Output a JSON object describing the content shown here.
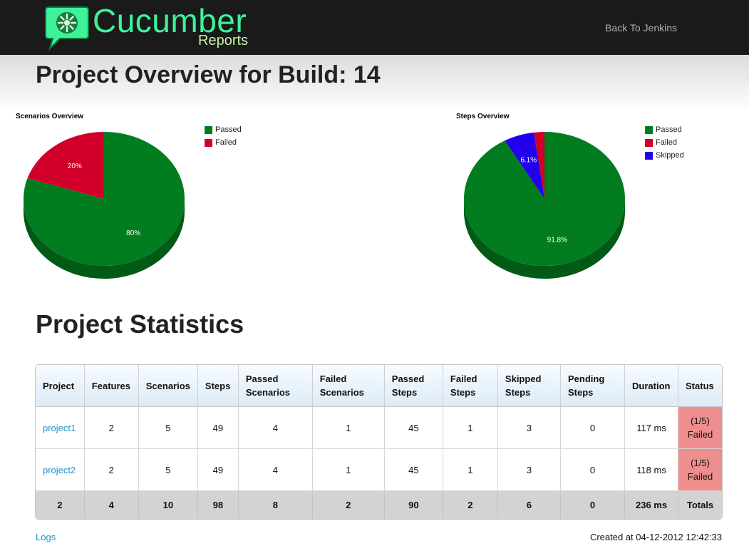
{
  "header": {
    "logo_title": "Cucumber",
    "logo_subtitle": "Reports",
    "back_link": "Back To Jenkins",
    "colors": {
      "bar": "#1a1a1a",
      "logo": "#3ff29a"
    }
  },
  "page_title": "Project Overview for Build: 14",
  "colors": {
    "passed": "#017d1f",
    "failed": "#d1002a",
    "skipped": "#2200ee"
  },
  "chart_data": [
    {
      "type": "pie",
      "title": "Scenarios Overview",
      "legend_position": "top-right",
      "slices": [
        {
          "name": "Passed",
          "value": 80,
          "label": "80%"
        },
        {
          "name": "Failed",
          "value": 20,
          "label": "20%"
        }
      ]
    },
    {
      "type": "pie",
      "title": "Steps Overview",
      "legend_position": "top-right",
      "slices": [
        {
          "name": "Passed",
          "value": 91.8,
          "label": "91.8%"
        },
        {
          "name": "Failed",
          "value": 2.1,
          "label": ""
        },
        {
          "name": "Skipped",
          "value": 6.1,
          "label": "6.1%"
        }
      ]
    }
  ],
  "stats": {
    "title": "Project Statistics",
    "headers": [
      "Project",
      "Features",
      "Scenarios",
      "Steps",
      "Passed Scenarios",
      "Failed Scenarios",
      "Passed Steps",
      "Failed Steps",
      "Skipped Steps",
      "Pending Steps",
      "Duration",
      "Status"
    ],
    "rows": [
      {
        "project": "project1",
        "features": "2",
        "scenarios": "5",
        "steps": "49",
        "passed_scenarios": "4",
        "failed_scenarios": "1",
        "passed_steps": "45",
        "failed_steps": "1",
        "skipped_steps": "3",
        "pending_steps": "0",
        "duration": "117 ms",
        "status_count": "(1/5)",
        "status": "Failed"
      },
      {
        "project": "project2",
        "features": "2",
        "scenarios": "5",
        "steps": "49",
        "passed_scenarios": "4",
        "failed_scenarios": "1",
        "passed_steps": "45",
        "failed_steps": "1",
        "skipped_steps": "3",
        "pending_steps": "0",
        "duration": "118 ms",
        "status_count": "(1/5)",
        "status": "Failed"
      }
    ],
    "totals": [
      "2",
      "4",
      "10",
      "98",
      "8",
      "2",
      "90",
      "2",
      "6",
      "0",
      "236 ms",
      "Totals"
    ]
  },
  "footer": {
    "logs_link": "Logs",
    "created": "Created at 04-12-2012 12:42:33"
  }
}
